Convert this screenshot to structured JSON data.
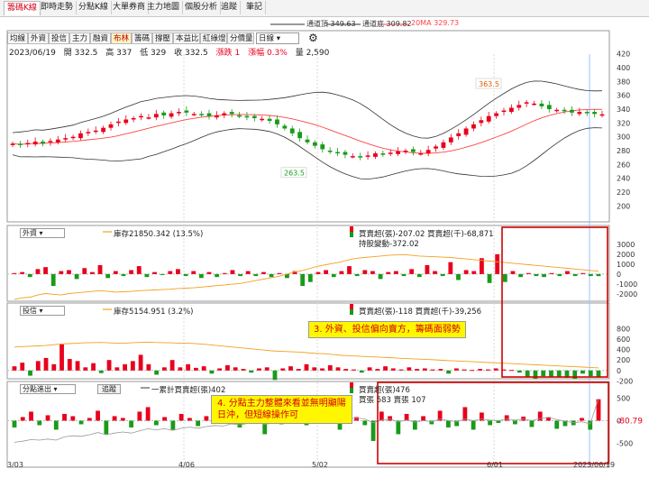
{
  "tabs": [
    {
      "label": "籌碼K線",
      "active": true
    },
    {
      "label": "即時走勢",
      "active": false
    },
    {
      "label": "分點K線",
      "active": false
    },
    {
      "label": "大單券商",
      "active": false
    },
    {
      "label": "主力地圖",
      "active": false
    },
    {
      "label": "個股分析",
      "active": false
    },
    {
      "label": "追蹤",
      "active": false
    },
    {
      "label": "筆記",
      "active": false
    }
  ],
  "legend": [
    {
      "label": "通道頂 349.63",
      "color": "#333333"
    },
    {
      "label": "通道底 309.82",
      "color": "#333333"
    },
    {
      "label": "20MA 329.73",
      "color": "#ff4444"
    }
  ],
  "toolbar": [
    {
      "label": "均線",
      "active": false
    },
    {
      "label": "外資",
      "active": false
    },
    {
      "label": "投信",
      "active": false
    },
    {
      "label": "主力",
      "active": false
    },
    {
      "label": "融資",
      "active": false
    },
    {
      "label": "布林",
      "active": true
    },
    {
      "label": "籌碼",
      "active": false
    },
    {
      "label": "撐壓",
      "active": false
    },
    {
      "label": "本益比",
      "active": false
    },
    {
      "label": "紅綠燈",
      "active": false
    },
    {
      "label": "分價量",
      "active": false
    }
  ],
  "period_select": "日線",
  "quote": {
    "date": "2023/06/19",
    "open": "開 332.5",
    "high": "高 337",
    "low": "低 329",
    "close": "收 332.5",
    "change": "漲跌 1",
    "pct": "漲幅 0.3%",
    "volume": "量 2,590"
  },
  "price_annotations": {
    "high": "363.5",
    "low": "263.5"
  },
  "price_axis": [
    "420",
    "400",
    "380",
    "360",
    "340",
    "320",
    "300",
    "280",
    "260",
    "240",
    "220",
    "200"
  ],
  "panels": [
    {
      "id": "foreign",
      "select": "外資",
      "stock_label": "庫存21850.342 (13.5%)",
      "trade_label": "買賣超(張)-207.02 買賣超(千)-68,871",
      "extra_label": "持股變動-372.02",
      "axis": [
        "3000",
        "2000",
        "1000",
        "0",
        "-1000",
        "-2000"
      ]
    },
    {
      "id": "trust",
      "select": "投信",
      "stock_label": "庫存5154.951 (3.2%)",
      "trade_label": "買賣超(張)-118 買賣超(千)-39,256",
      "axis": [
        "800",
        "600",
        "400",
        "200",
        "0",
        "-200"
      ]
    },
    {
      "id": "branch",
      "select": "分點進出",
      "button": "追蹤",
      "cum_label": "一累計買賣超(張)402",
      "trade_label": "買賣超(張)476",
      "extra_label": "買張 583 賣張 107",
      "axis": [
        "500",
        "0",
        "-500"
      ],
      "value_tag": "-80.79"
    }
  ],
  "date_axis": [
    "3/03",
    "4/06",
    "5/02",
    "6/01",
    "2023/06/19"
  ],
  "notes": [
    {
      "text": "3. 外資、投信偏向賣方，籌碼面弱勢"
    },
    {
      "line1": "4. 分點主力整體來看並無明顯陽",
      "line2": "日沖，但短線操作可"
    }
  ],
  "colors": {
    "up": "#e8001c",
    "down": "#1a9a1a",
    "ma20": "#ff4444",
    "band": "#333333",
    "highlight": "#d00000",
    "note_bg": "#fff700",
    "ref_line": "#f4a020"
  },
  "chart_data": {
    "type": "candlestick",
    "title": "",
    "y_range": [
      190,
      430
    ],
    "dates_shown": [
      "3/03",
      "4/06",
      "5/02",
      "6/01",
      "2023/06/19"
    ],
    "last_bar": {
      "date": "2023/06/19",
      "open": 332.5,
      "high": 337,
      "low": 329,
      "close": 332.5,
      "volume": 2590
    },
    "bollinger": {
      "upper": 349.63,
      "lower": 309.82,
      "ma20": 329.73
    },
    "close_series": [
      290,
      288,
      291,
      293,
      290,
      294,
      296,
      298,
      300,
      305,
      307,
      309,
      313,
      318,
      322,
      325,
      327,
      330,
      328,
      333,
      331,
      334,
      336,
      335,
      333,
      332,
      330,
      331,
      334,
      333,
      330,
      328,
      327,
      326,
      323,
      318,
      312,
      305,
      298,
      292,
      287,
      282,
      278,
      276,
      274,
      272,
      270,
      273,
      276,
      275,
      277,
      279,
      280,
      278,
      276,
      281,
      286,
      292,
      299,
      305,
      312,
      318,
      324,
      330,
      334,
      338,
      342,
      346,
      350,
      348,
      344,
      340,
      339,
      337,
      335,
      336,
      334,
      333,
      332.5
    ],
    "foreign_net_series": [
      100,
      200,
      -300,
      500,
      700,
      -1200,
      300,
      400,
      -500,
      600,
      200,
      900,
      -400,
      300,
      -200,
      400,
      800,
      -300,
      200,
      -100,
      300,
      500,
      -200,
      300,
      -400,
      200,
      -300,
      100,
      400,
      -200,
      300,
      -200,
      200,
      -300,
      100,
      -400,
      300,
      -1200,
      -800,
      200,
      400,
      -300,
      300,
      800,
      -200,
      400,
      300,
      -500,
      200,
      300,
      -200,
      500,
      -300,
      900,
      300,
      -200,
      1200,
      -600,
      400,
      300,
      1600,
      -900,
      2000,
      -800,
      300,
      -300,
      100,
      -200,
      -300,
      100,
      -200,
      300,
      -200,
      100,
      -200,
      -207
    ],
    "foreign_stock_series": [
      800,
      820,
      830,
      860,
      880,
      870,
      860,
      880,
      890,
      900,
      910,
      920,
      910,
      900,
      905,
      910,
      920,
      925,
      930,
      935,
      940,
      950,
      955,
      960,
      970,
      980,
      990,
      1000,
      1010,
      1020,
      1040,
      1060,
      1080,
      1100,
      1120,
      1150,
      1180,
      1200,
      1230,
      1260,
      1280,
      1300,
      1320,
      1350,
      1370,
      1380,
      1390,
      1400,
      1410,
      1415,
      1420,
      1410,
      1400,
      1395,
      1390,
      1385,
      1380,
      1370,
      1360,
      1350,
      1340,
      1330,
      1320,
      1310,
      1300,
      1290,
      1280,
      1270,
      1260,
      1250,
      1240,
      1230,
      1220,
      1210,
      1200,
      1190
    ],
    "trust_net_series": [
      80,
      150,
      -100,
      180,
      240,
      120,
      500,
      220,
      180,
      60,
      140,
      -50,
      200,
      60,
      120,
      180,
      300,
      120,
      -80,
      60,
      200,
      60,
      120,
      50,
      80,
      -60,
      40,
      100,
      60,
      30,
      -40,
      40,
      60,
      -180,
      40,
      80,
      30,
      120,
      60,
      40,
      100,
      60,
      30,
      20,
      -40,
      60,
      30,
      80,
      40,
      20,
      60,
      30,
      40,
      20,
      30,
      -60,
      40,
      20,
      10,
      30,
      20,
      40,
      20,
      10,
      -40,
      -120,
      -160,
      -110,
      -130,
      -120,
      -140,
      -160,
      -60,
      -110,
      -118
    ],
    "trust_stock_series": [
      820,
      830,
      840,
      850,
      860,
      880,
      900,
      910,
      920,
      930,
      935,
      940,
      930,
      925,
      920,
      930,
      940,
      950,
      940,
      935,
      930,
      925,
      920,
      915,
      900,
      880,
      860,
      840,
      820,
      800,
      780,
      760,
      740,
      720,
      710,
      700,
      690,
      680,
      660,
      650,
      640,
      620,
      600,
      590,
      580,
      570,
      560,
      550,
      540,
      530,
      520,
      510,
      500,
      490,
      480,
      470,
      460,
      450,
      440,
      430,
      420,
      410,
      400,
      390,
      380,
      370,
      360,
      350,
      340,
      330,
      320,
      310,
      300,
      290,
      280,
      270
    ],
    "branch_net_series": [
      -150,
      80,
      200,
      -100,
      120,
      -200,
      150,
      100,
      -80,
      60,
      220,
      -300,
      100,
      60,
      -150,
      200,
      300,
      -100,
      80,
      -200,
      150,
      60,
      -120,
      100,
      80,
      -60,
      200,
      -150,
      100,
      60,
      -300,
      120,
      -80,
      200,
      100,
      -100,
      300,
      -60,
      120,
      -200,
      150,
      80,
      -100,
      -450,
      200,
      100,
      -300,
      150,
      -200,
      100,
      -80,
      220,
      -150,
      -120,
      300,
      -200,
      180,
      -100,
      -50,
      120,
      -80,
      90,
      -140,
      200,
      80,
      -180,
      -120,
      -100,
      60,
      -200,
      476
    ],
    "branch_cum_series": [
      -400,
      -380,
      -350,
      -360,
      -340,
      -360,
      -300,
      -280,
      -290,
      -260,
      -220,
      -260,
      -230,
      -210,
      -230,
      -190,
      -150,
      -170,
      -150,
      -180,
      -140,
      -120,
      -140,
      -110,
      -90,
      -100,
      -60,
      -80,
      -50,
      -30,
      -70,
      -40,
      -50,
      -10,
      20,
      -10,
      30,
      10,
      40,
      0,
      30,
      50,
      30,
      -40,
      10,
      30,
      -20,
      10,
      -30,
      0,
      -20,
      30,
      0,
      -20,
      30,
      0,
      30,
      10,
      0,
      30,
      10,
      30,
      0,
      40,
      60,
      20,
      -10,
      -40,
      -20,
      -60,
      402
    ]
  }
}
